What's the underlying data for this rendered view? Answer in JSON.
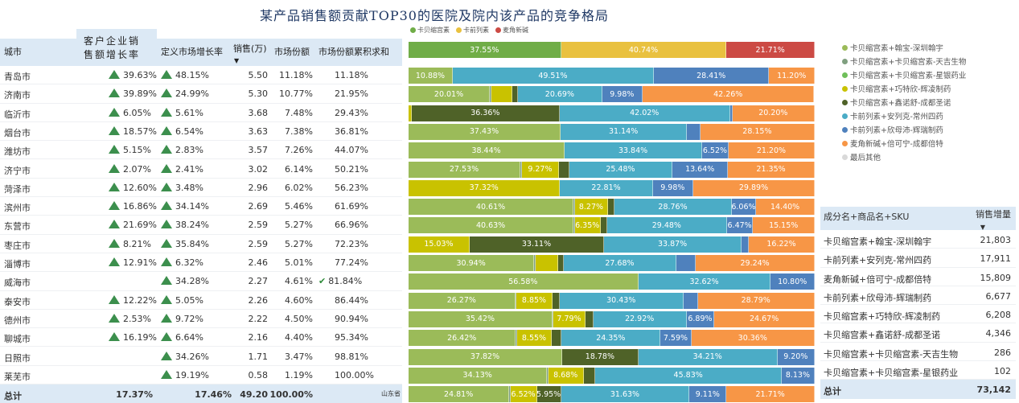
{
  "title": "某产品销售额贡献TOP30的医院及院内该产品的竞争格局",
  "top_legend": [
    {
      "label": "卡贝缩宫素",
      "color": "#70ad47"
    },
    {
      "label": "卡前列素",
      "color": "#e9c13f"
    },
    {
      "label": "麦角新碱",
      "color": "#cc4a44"
    }
  ],
  "top_bar": [
    {
      "value": 37.55,
      "label": "37.55%",
      "color": "#70ad47"
    },
    {
      "value": 40.74,
      "label": "40.74%",
      "color": "#e9c13f"
    },
    {
      "value": 21.71,
      "label": "21.71%",
      "color": "#cc4a44"
    }
  ],
  "table": {
    "headers": {
      "city": "城市",
      "cust_growth": "客户企业销售额增长率",
      "mkt_growth": "定义市场增长率",
      "sales": "销售(万)",
      "share": "市场份额",
      "cum_share": "市场份额累积求和"
    },
    "rows": [
      {
        "city": "青岛市",
        "cust_growth": "39.63%",
        "mkt_growth": "48.15%",
        "sales": "5.50",
        "share": "11.18%",
        "cum": "11.18%"
      },
      {
        "city": "济南市",
        "cust_growth": "39.89%",
        "mkt_growth": "24.99%",
        "sales": "5.30",
        "share": "10.77%",
        "cum": "21.95%"
      },
      {
        "city": "临沂市",
        "cust_growth": "6.05%",
        "mkt_growth": "5.61%",
        "sales": "3.68",
        "share": "7.48%",
        "cum": "29.43%"
      },
      {
        "city": "烟台市",
        "cust_growth": "18.57%",
        "mkt_growth": "6.54%",
        "sales": "3.63",
        "share": "7.38%",
        "cum": "36.81%"
      },
      {
        "city": "潍坊市",
        "cust_growth": "5.15%",
        "mkt_growth": "2.83%",
        "sales": "3.57",
        "share": "7.26%",
        "cum": "44.07%"
      },
      {
        "city": "济宁市",
        "cust_growth": "2.07%",
        "mkt_growth": "2.41%",
        "sales": "3.02",
        "share": "6.14%",
        "cum": "50.21%"
      },
      {
        "city": "菏泽市",
        "cust_growth": "12.60%",
        "mkt_growth": "3.48%",
        "sales": "2.96",
        "share": "6.02%",
        "cum": "56.23%"
      },
      {
        "city": "滨州市",
        "cust_growth": "16.86%",
        "mkt_growth": "34.14%",
        "sales": "2.69",
        "share": "5.46%",
        "cum": "61.69%"
      },
      {
        "city": "东营市",
        "cust_growth": "21.69%",
        "mkt_growth": "38.24%",
        "sales": "2.59",
        "share": "5.27%",
        "cum": "66.96%"
      },
      {
        "city": "枣庄市",
        "cust_growth": "8.21%",
        "mkt_growth": "35.84%",
        "sales": "2.59",
        "share": "5.27%",
        "cum": "72.23%"
      },
      {
        "city": "淄博市",
        "cust_growth": "12.91%",
        "mkt_growth": "6.32%",
        "sales": "2.46",
        "share": "5.01%",
        "cum": "77.24%"
      },
      {
        "city": "威海市",
        "cust_growth": "",
        "mkt_growth": "34.28%",
        "sales": "2.27",
        "share": "4.61%",
        "cum": "81.84%",
        "check": true
      },
      {
        "city": "泰安市",
        "cust_growth": "12.22%",
        "mkt_growth": "5.05%",
        "sales": "2.26",
        "share": "4.60%",
        "cum": "86.44%"
      },
      {
        "city": "德州市",
        "cust_growth": "2.53%",
        "mkt_growth": "9.72%",
        "sales": "2.22",
        "share": "4.50%",
        "cum": "90.94%"
      },
      {
        "city": "聊城市",
        "cust_growth": "16.19%",
        "mkt_growth": "6.64%",
        "sales": "2.16",
        "share": "4.40%",
        "cum": "95.34%"
      },
      {
        "city": "日照市",
        "cust_growth": "",
        "mkt_growth": "34.26%",
        "sales": "1.71",
        "share": "3.47%",
        "cum": "98.81%"
      },
      {
        "city": "莱芜市",
        "cust_growth": "",
        "mkt_growth": "19.19%",
        "sales": "0.58",
        "share": "1.19%",
        "cum": "100.00%"
      }
    ],
    "total": {
      "label": "总计",
      "cust_growth": "17.37%",
      "mkt_growth": "17.46%",
      "sales": "49.20",
      "share": "100.00%"
    }
  },
  "province_label": "山东省",
  "series": [
    {
      "name": "卡贝缩宫素+翰宝-深圳翰宇",
      "color": "#9bbb59"
    },
    {
      "name": "卡贝缩宫素+卡贝缩宫素-天吉生物",
      "color": "#7f9f7f"
    },
    {
      "name": "卡贝缩宫素+卡贝缩宫素-星银药业",
      "color": "#6fbf5a"
    },
    {
      "name": "卡贝缩宫素+巧特欣-辉凌制药",
      "color": "#c9c200"
    },
    {
      "name": "卡贝缩宫素+鑫诺舒-成都圣诺",
      "color": "#4f6228"
    },
    {
      "name": "卡前列素+安列克-常州四药",
      "color": "#4bacc6"
    },
    {
      "name": "卡前列素+欣母沛-辉瑞制药",
      "color": "#4f81bd"
    },
    {
      "name": "麦角新碱+倍可宁-成都倍特",
      "color": "#f79646"
    },
    {
      "name": "最后其他",
      "color": "#d9d9d9"
    }
  ],
  "bars": [
    [
      10.88,
      0,
      0,
      0,
      0,
      49.51,
      28.41,
      11.2
    ],
    [
      20.01,
      0.3,
      0,
      5.2,
      1.46,
      20.69,
      9.98,
      42.26
    ],
    [
      0,
      0,
      0,
      0.8,
      36.36,
      42.02,
      0.6,
      20.2
    ],
    [
      37.43,
      0,
      0,
      0,
      0,
      31.14,
      3.28,
      28.15
    ],
    [
      38.44,
      0,
      0,
      0,
      0,
      33.84,
      6.52,
      21.2
    ],
    [
      27.53,
      0.3,
      0,
      9.27,
      2.43,
      25.48,
      13.64,
      21.35
    ],
    [
      0,
      0,
      0,
      37.32,
      0,
      22.81,
      9.98,
      29.89
    ],
    [
      40.61,
      0.3,
      0,
      8.27,
      1.6,
      28.76,
      6.06,
      14.4
    ],
    [
      40.63,
      0.3,
      0,
      6.35,
      1.62,
      29.48,
      6.47,
      15.15
    ],
    [
      0,
      0,
      0,
      15.03,
      33.11,
      33.87,
      1.77,
      16.22
    ],
    [
      30.94,
      0.3,
      0,
      5.5,
      1.5,
      27.68,
      4.84,
      29.24
    ],
    [
      56.58,
      0,
      0,
      0,
      0,
      32.62,
      10.8,
      0
    ],
    [
      26.27,
      0.3,
      0,
      8.85,
      1.8,
      30.43,
      3.56,
      28.79
    ],
    [
      35.42,
      0.3,
      0,
      7.79,
      2.01,
      22.92,
      6.89,
      24.67
    ],
    [
      26.42,
      0.3,
      0,
      8.55,
      2.43,
      24.35,
      7.59,
      30.36
    ],
    [
      37.82,
      0,
      0,
      0,
      18.78,
      34.21,
      9.2,
      0
    ],
    [
      34.13,
      0.3,
      0,
      8.68,
      2.93,
      45.83,
      8.13,
      0
    ]
  ],
  "total_bar": [
    24.81,
    0.27,
    0,
    6.52,
    5.95,
    31.63,
    9.11,
    21.71
  ],
  "right_table": {
    "header_name": "成分名+商品名+SKU",
    "header_value": "销售增量",
    "rows": [
      {
        "name": "卡贝缩宫素+翰宝-深圳翰宇",
        "value": "21,803"
      },
      {
        "name": "卡前列素+安列克-常州四药",
        "value": "17,911"
      },
      {
        "name": "麦角新碱+倍可宁-成都倍特",
        "value": "15,809"
      },
      {
        "name": "卡前列素+欣母沛-辉瑞制药",
        "value": "6,677"
      },
      {
        "name": "卡贝缩宫素+巧特欣-辉凌制药",
        "value": "6,208"
      },
      {
        "name": "卡贝缩宫素+鑫诺舒-成都圣诺",
        "value": "4,346"
      },
      {
        "name": "卡贝缩宫素+卡贝缩宫素-天吉生物",
        "value": "286"
      },
      {
        "name": "卡贝缩宫素+卡贝缩宫素-星银药业",
        "value": "102"
      }
    ],
    "total_label": "总计",
    "total_value": "73,142"
  }
}
